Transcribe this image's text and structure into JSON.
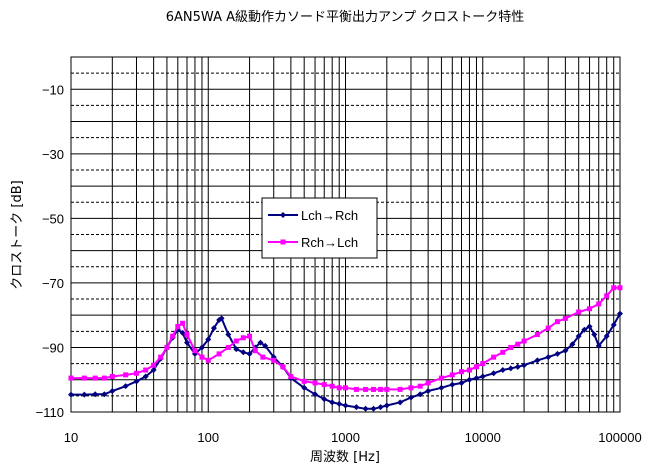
{
  "chart_data": {
    "type": "line",
    "title": "6AN5WA A級動作カソード平衡出力アンプ クロストーク特性",
    "xlabel": "周波数 [Hz]",
    "ylabel": "クロストーク [dB]",
    "x_scale": "log",
    "xlim": [
      10,
      100000
    ],
    "ylim": [
      -110,
      0
    ],
    "grid": true,
    "legend_position": "center-left",
    "x_ticks": [
      10,
      100,
      1000,
      10000,
      100000
    ],
    "x_tick_labels": [
      "10",
      "100",
      "1000",
      "10000",
      "100000"
    ],
    "y_ticks": [
      -10,
      -30,
      -50,
      -70,
      -90,
      -110
    ],
    "y_tick_labels": [
      "-10",
      "-30",
      "-50",
      "-70",
      "-90",
      "-110"
    ],
    "series": [
      {
        "name": "Lch→Rch",
        "color": "#000080",
        "marker": "diamond",
        "x": [
          10,
          12.5,
          15,
          17.5,
          20,
          25,
          30,
          35,
          40,
          45,
          50,
          55,
          60,
          65,
          70,
          80,
          90,
          100,
          110,
          120,
          125,
          140,
          160,
          180,
          200,
          220,
          240,
          260,
          300,
          350,
          400,
          500,
          600,
          700,
          800,
          900,
          1000,
          1200,
          1400,
          1600,
          1800,
          2000,
          2500,
          3000,
          3500,
          4000,
          5000,
          6000,
          7000,
          8000,
          9000,
          10000,
          12000,
          14000,
          16000,
          18000,
          20000,
          25000,
          30000,
          35000,
          40000,
          45000,
          50000,
          55000,
          60000,
          65000,
          70000,
          80000,
          90000,
          100000
        ],
        "y": [
          -104.6,
          -104.6,
          -104.5,
          -104.5,
          -103.5,
          -102,
          -100.5,
          -99,
          -97,
          -93.5,
          -90,
          -87,
          -84.5,
          -85.5,
          -88.5,
          -92,
          -90,
          -87.5,
          -84,
          -81.5,
          -81,
          -86,
          -90.5,
          -91.5,
          -92,
          -90,
          -88.5,
          -89.5,
          -93,
          -96,
          -99.5,
          -102.5,
          -104.5,
          -106,
          -107,
          -107.5,
          -108,
          -108.5,
          -109,
          -109,
          -108.5,
          -108,
          -107,
          -105.5,
          -104.5,
          -103.5,
          -102.5,
          -101.5,
          -101,
          -100,
          -99.5,
          -99,
          -98,
          -97,
          -96.5,
          -96,
          -95.5,
          -94,
          -93,
          -92,
          -91,
          -89,
          -86.5,
          -84.5,
          -83.5,
          -86,
          -89.5,
          -86.5,
          -83,
          -79.5
        ]
      },
      {
        "name": "Rch→Lch",
        "color": "#ff00ff",
        "marker": "square",
        "x": [
          10,
          12.5,
          15,
          17.5,
          20,
          25,
          30,
          35,
          40,
          45,
          50,
          55,
          60,
          65,
          70,
          80,
          90,
          100,
          120,
          140,
          160,
          180,
          200,
          220,
          250,
          300,
          350,
          400,
          500,
          600,
          700,
          800,
          900,
          1000,
          1200,
          1400,
          1600,
          1800,
          2000,
          2500,
          3000,
          3500,
          4000,
          5000,
          6000,
          7000,
          8000,
          9000,
          10000,
          12000,
          14000,
          16000,
          18000,
          20000,
          25000,
          30000,
          35000,
          40000,
          50000,
          60000,
          70000,
          80000,
          90000,
          100000
        ],
        "y": [
          -99.5,
          -99.5,
          -99.5,
          -99.5,
          -99,
          -98.5,
          -98,
          -97,
          -95.5,
          -93,
          -90,
          -86.5,
          -83.5,
          -82.5,
          -86,
          -91,
          -93,
          -94,
          -92,
          -90,
          -88,
          -87,
          -86.5,
          -91,
          -93,
          -94,
          -96,
          -99,
          -100.5,
          -101,
          -101.5,
          -102,
          -102.5,
          -102.5,
          -103,
          -103,
          -103,
          -103,
          -103,
          -103,
          -102.5,
          -102,
          -101,
          -99.5,
          -98.5,
          -97.5,
          -97,
          -96,
          -95,
          -93,
          -91.5,
          -90,
          -89,
          -88,
          -86,
          -84,
          -82,
          -81,
          -79,
          -78,
          -76.5,
          -74,
          -71.5,
          -71.5
        ]
      }
    ]
  }
}
